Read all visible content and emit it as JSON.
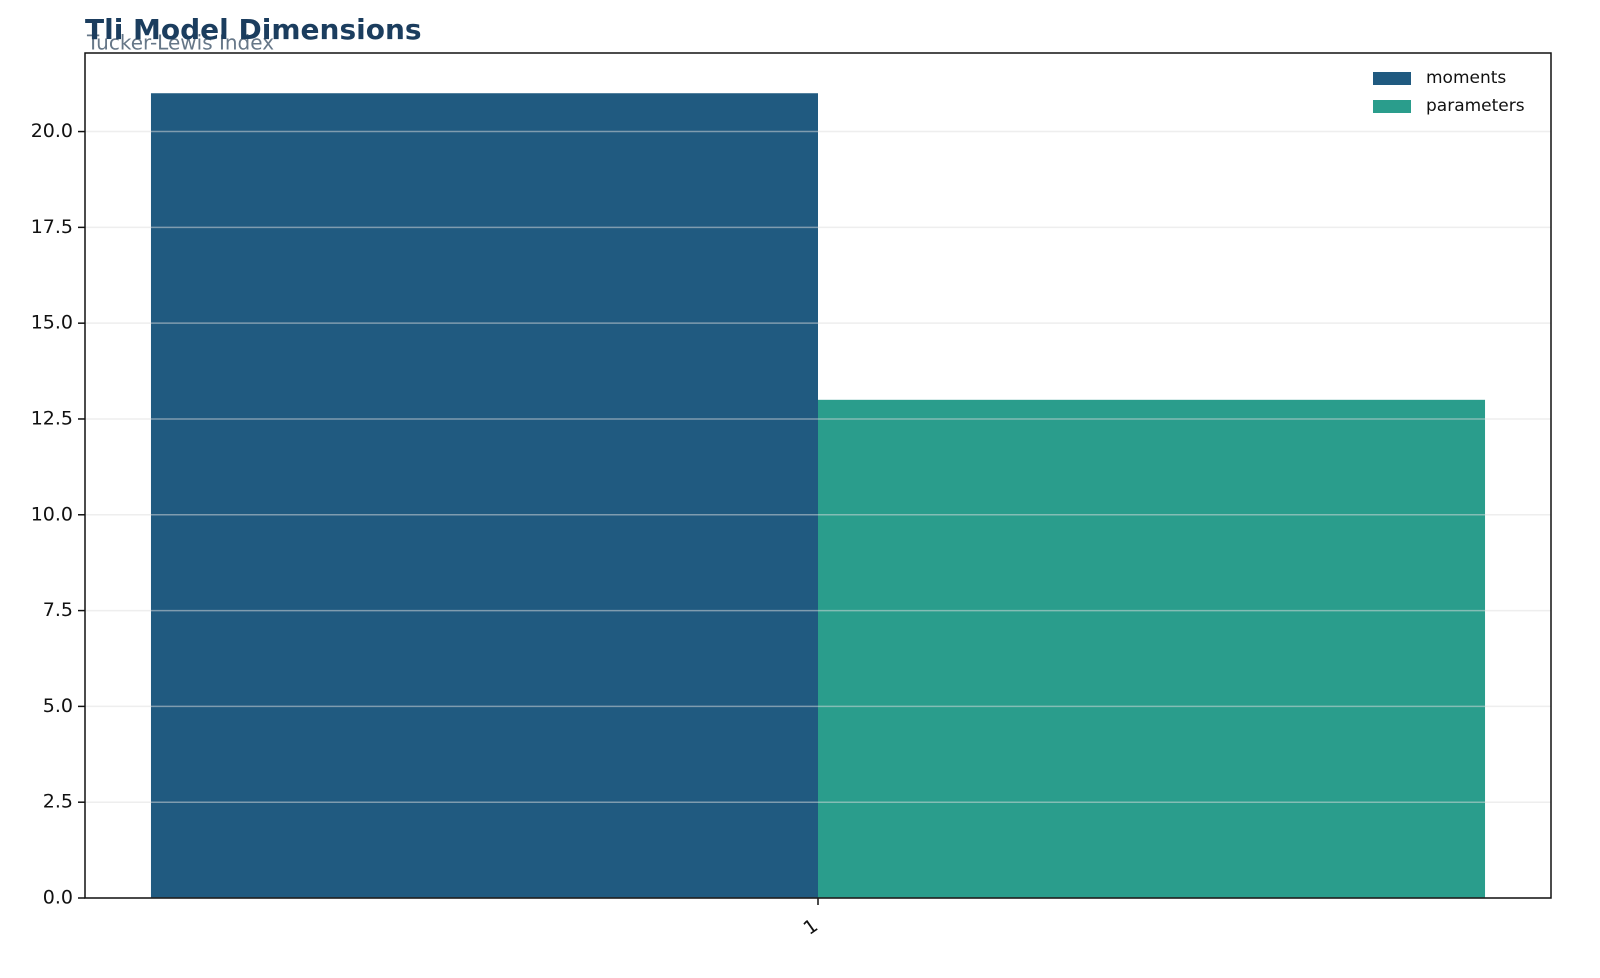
{
  "chart_data": {
    "type": "bar",
    "title": "Tli Model Dimensions",
    "subtitle": "Tucker-Lewis Index",
    "categories": [
      "1"
    ],
    "series": [
      {
        "name": "moments",
        "color": "#205a80",
        "values": [
          21
        ]
      },
      {
        "name": "parameters",
        "color": "#2a9d8c",
        "values": [
          13
        ]
      }
    ],
    "ylim": [
      0,
      22.05
    ],
    "yticks": [
      {
        "value": 0,
        "label": "0.0"
      },
      2.5,
      {
        "value": 5,
        "label": "5.0"
      },
      7.5,
      {
        "value": 10,
        "label": "10.0"
      },
      12.5,
      {
        "value": 15,
        "label": "15.0"
      },
      17.5,
      {
        "value": 20,
        "label": "20.0"
      }
    ],
    "grid": true,
    "legend": "upper-right"
  }
}
